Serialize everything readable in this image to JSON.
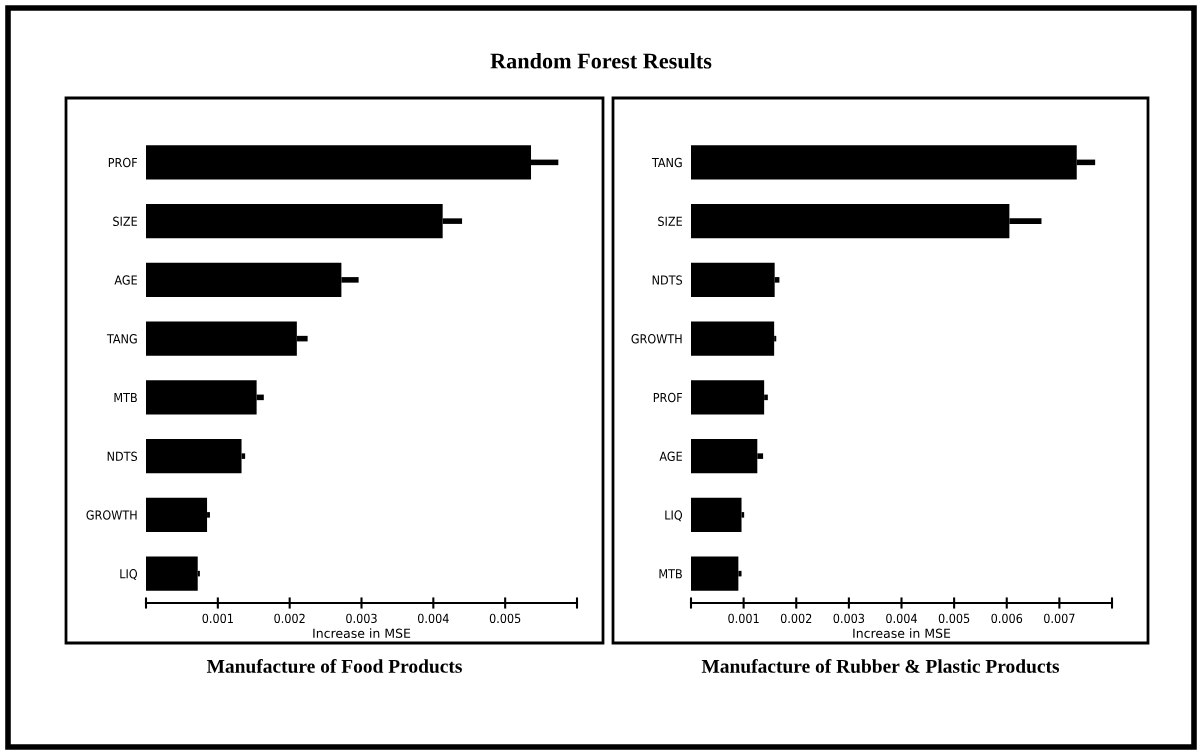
{
  "chart_data": [
    {
      "type": "bar",
      "orientation": "horizontal",
      "title": "Random Forest Results",
      "subtitle": "Manufacture of Food Products",
      "xlabel": "Increase in MSE",
      "categories": [
        "PROF",
        "SIZE",
        "AGE",
        "TANG",
        "MTB",
        "NDTS",
        "GROWTH",
        "LIQ"
      ],
      "values": [
        0.00536,
        0.00413,
        0.00272,
        0.0021,
        0.00154,
        0.00133,
        0.00085,
        0.00072
      ],
      "errors": [
        [
          0.00536,
          0.00574
        ],
        [
          0.00413,
          0.0044
        ],
        [
          0.00272,
          0.00296
        ],
        [
          0.0021,
          0.00225
        ],
        [
          0.00154,
          0.00164
        ],
        [
          0.00133,
          0.00138
        ],
        [
          0.00085,
          0.00089
        ],
        [
          0.00072,
          0.00075
        ]
      ],
      "color": "#000000",
      "xlim": [
        0,
        0.006
      ],
      "xticks": [
        {
          "value": 0,
          "label": null
        },
        {
          "value": 0.001,
          "label": "0.001"
        },
        {
          "value": 0.002,
          "label": "0.002"
        },
        {
          "value": 0.003,
          "label": "0.003"
        },
        {
          "value": 0.004,
          "label": "0.004"
        },
        {
          "value": 0.005,
          "label": "0.005"
        },
        {
          "value": 0.006,
          "label": null
        }
      ],
      "grid": false,
      "legend": false
    },
    {
      "type": "bar",
      "orientation": "horizontal",
      "subtitle": "Manufacture of Rubber & Plastic Products",
      "xlabel": "Increase in MSE",
      "categories": [
        "TANG",
        "SIZE",
        "NDTS",
        "GROWTH",
        "PROF",
        "AGE",
        "LIQ",
        "MTB"
      ],
      "values": [
        0.00733,
        0.00605,
        0.00159,
        0.00158,
        0.00139,
        0.00126,
        0.00096,
        0.0009
      ],
      "errors": [
        [
          0.00733,
          0.00768
        ],
        [
          0.00605,
          0.00666
        ],
        [
          0.00159,
          0.00168
        ],
        [
          0.00158,
          0.00162
        ],
        [
          0.00139,
          0.00146
        ],
        [
          0.00126,
          0.00137
        ],
        [
          0.00096,
          0.00101
        ],
        [
          0.0009,
          0.00096
        ]
      ],
      "color": "#000000",
      "xlim": [
        0,
        0.008
      ],
      "xticks": [
        {
          "value": 0,
          "label": null
        },
        {
          "value": 0.001,
          "label": "0.001"
        },
        {
          "value": 0.002,
          "label": "0.002"
        },
        {
          "value": 0.003,
          "label": "0.003"
        },
        {
          "value": 0.004,
          "label": "0.004"
        },
        {
          "value": 0.005,
          "label": "0.005"
        },
        {
          "value": 0.006,
          "label": "0.006"
        },
        {
          "value": 0.007,
          "label": "0.007"
        },
        {
          "value": 0.008,
          "label": null
        }
      ],
      "grid": false,
      "legend": false
    }
  ]
}
